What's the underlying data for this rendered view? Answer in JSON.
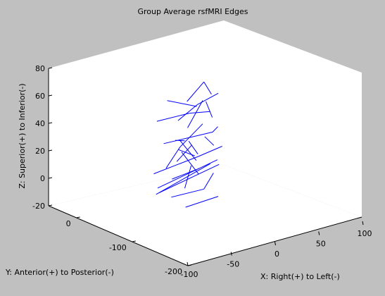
{
  "window": {
    "background": "#c0c0c0"
  },
  "chart_data": {
    "type": "line",
    "title": "Group Average rsfMRI Edges",
    "xlabel": "X: Right(+) to Left(-)",
    "ylabel": "Y: Anterior(+) to Posterior(-)",
    "zlabel": "Z: Superior(+) to Inferior(-)",
    "xlim": [
      -100,
      100
    ],
    "ylim": [
      -200,
      50
    ],
    "zlim": [
      -20,
      80
    ],
    "x_ticks": [
      -100,
      -50,
      0,
      50,
      100
    ],
    "y_ticks": [
      -200,
      -100,
      0
    ],
    "z_ticks": [
      -20,
      0,
      20,
      40,
      60,
      80
    ],
    "grid": false,
    "line_color": "#0000ff",
    "axes_color": "#ffffff",
    "series": [
      {
        "edges": [
          [
            [
              -12,
              -60,
              62
            ],
            [
              20,
              -40,
              68
            ]
          ],
          [
            [
              20,
              -40,
              68
            ],
            [
              35,
              -30,
              55
            ]
          ],
          [
            [
              -40,
              -50,
              50
            ],
            [
              10,
              -30,
              45
            ]
          ],
          [
            [
              10,
              -30,
              45
            ],
            [
              40,
              -20,
              40
            ]
          ],
          [
            [
              -45,
              -70,
              38
            ],
            [
              30,
              -40,
              30
            ]
          ],
          [
            [
              30,
              -40,
              30
            ],
            [
              55,
              -10,
              25
            ]
          ],
          [
            [
              -55,
              -90,
              25
            ],
            [
              -20,
              -60,
              30
            ]
          ],
          [
            [
              -20,
              -60,
              30
            ],
            [
              25,
              -30,
              35
            ]
          ],
          [
            [
              -35,
              -80,
              55
            ],
            [
              0,
              -60,
              58
            ]
          ],
          [
            [
              0,
              -60,
              58
            ],
            [
              30,
              -50,
              60
            ]
          ],
          [
            [
              -50,
              -60,
              15
            ],
            [
              20,
              -30,
              12
            ]
          ],
          [
            [
              20,
              -30,
              12
            ],
            [
              60,
              -10,
              10
            ]
          ],
          [
            [
              -60,
              -80,
              5
            ],
            [
              40,
              -20,
              2
            ]
          ],
          [
            [
              -55,
              -75,
              8
            ],
            [
              45,
              -25,
              5
            ]
          ],
          [
            [
              -50,
              -70,
              3
            ],
            [
              50,
              -20,
              0
            ]
          ],
          [
            [
              10,
              -10,
              15
            ],
            [
              35,
              0,
              5
            ]
          ],
          [
            [
              15,
              -5,
              20
            ],
            [
              40,
              5,
              0
            ]
          ],
          [
            [
              20,
              0,
              10
            ],
            [
              30,
              -15,
              -5
            ]
          ],
          [
            [
              25,
              -5,
              18
            ],
            [
              45,
              10,
              3
            ]
          ],
          [
            [
              5,
              -15,
              8
            ],
            [
              35,
              5,
              12
            ]
          ],
          [
            [
              -30,
              -60,
              -5
            ],
            [
              20,
              -40,
              -10
            ]
          ],
          [
            [
              20,
              -40,
              -10
            ],
            [
              50,
              -10,
              -8
            ]
          ],
          [
            [
              -20,
              -70,
              -12
            ],
            [
              30,
              -50,
              -15
            ]
          ],
          [
            [
              -40,
              -100,
              10
            ],
            [
              -20,
              -80,
              20
            ]
          ],
          [
            [
              -5,
              -50,
              40
            ],
            [
              25,
              -30,
              52
            ]
          ],
          [
            [
              35,
              -20,
              48
            ],
            [
              55,
              0,
              30
            ]
          ],
          [
            [
              -25,
              -45,
              62
            ],
            [
              15,
              -35,
              50
            ]
          ],
          [
            [
              40,
              -10,
              20
            ],
            [
              60,
              5,
              8
            ]
          ],
          [
            [
              0,
              -20,
              25
            ],
            [
              30,
              10,
              15
            ]
          ],
          [
            [
              -10,
              -30,
              0
            ],
            [
              40,
              0,
              -5
            ]
          ]
        ]
      }
    ]
  }
}
